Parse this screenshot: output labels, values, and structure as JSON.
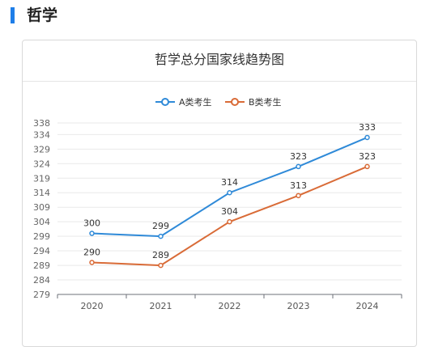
{
  "section": {
    "title": "哲学"
  },
  "chart_data": {
    "type": "line",
    "title": "哲学总分国家线趋势图",
    "categories": [
      "2020",
      "2021",
      "2022",
      "2023",
      "2024"
    ],
    "series": [
      {
        "name": "A类考生",
        "values": [
          300,
          299,
          314,
          323,
          333
        ],
        "color": "#2f8ad8"
      },
      {
        "name": "B类考生",
        "values": [
          290,
          289,
          304,
          313,
          323
        ],
        "color": "#d96b37"
      }
    ],
    "y_ticks": [
      279,
      284,
      289,
      294,
      299,
      304,
      309,
      314,
      319,
      324,
      329,
      334,
      338
    ],
    "ylim": [
      279,
      338
    ],
    "legend": "top-center",
    "grid": true
  }
}
